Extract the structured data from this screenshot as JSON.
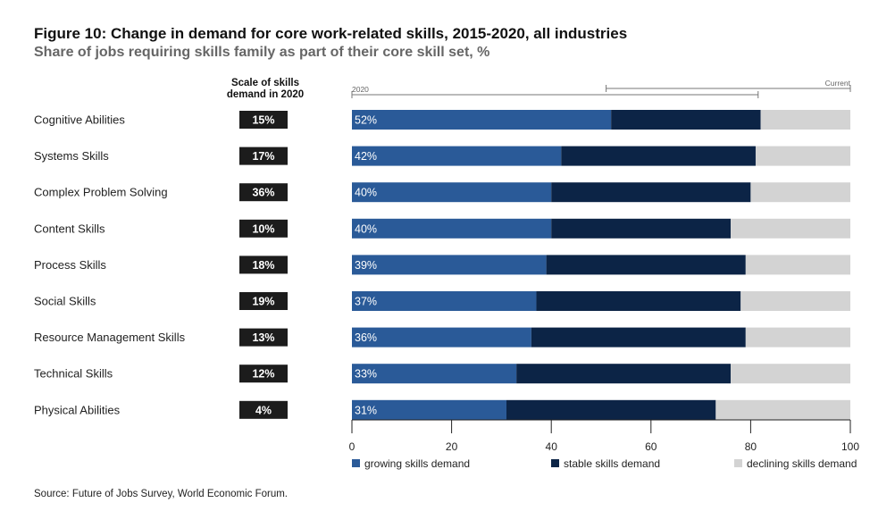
{
  "title": "Figure 10: Change in demand for core work-related skills, 2015-2020, all industries",
  "subtitle": "Share of jobs requiring skills family as part of their core skill set, %",
  "scale_header": "Scale of skills demand in 2020",
  "source": "Source: Future of Jobs Survey, World Economic Forum.",
  "colors": {
    "growing": "#2a5a98",
    "stable": "#0c2446",
    "declining": "#d3d3d3",
    "badge": "#1c1c1c"
  },
  "chart_data": {
    "type": "bar",
    "orientation": "horizontal",
    "stacked": true,
    "categories": [
      "Cognitive Abilities",
      "Systems Skills",
      "Complex Problem Solving",
      "Content Skills",
      "Process Skills",
      "Social Skills",
      "Resource Management Skills",
      "Technical Skills",
      "Physical Abilities"
    ],
    "scale_of_demand_2020": [
      "15%",
      "17%",
      "36%",
      "10%",
      "18%",
      "19%",
      "13%",
      "12%",
      "4%"
    ],
    "series": [
      {
        "name": "growing skills demand",
        "values": [
          52,
          42,
          40,
          40,
          39,
          37,
          36,
          33,
          31
        ]
      },
      {
        "name": "stable skills demand",
        "values": [
          30,
          39,
          40,
          36,
          40,
          41,
          43,
          43,
          42
        ]
      },
      {
        "name": "declining skills demand",
        "values": [
          18,
          19,
          20,
          24,
          21,
          22,
          21,
          24,
          27
        ]
      }
    ],
    "bar_labels": [
      "52%",
      "42%",
      "40%",
      "40%",
      "39%",
      "37%",
      "36%",
      "33%",
      "31%"
    ],
    "xlim": [
      0,
      100
    ],
    "xticks": [
      0,
      20,
      40,
      60,
      80,
      100
    ],
    "bracket_labels": {
      "left": "2020",
      "right": "Current"
    },
    "legend_position": "bottom",
    "grid": false
  }
}
